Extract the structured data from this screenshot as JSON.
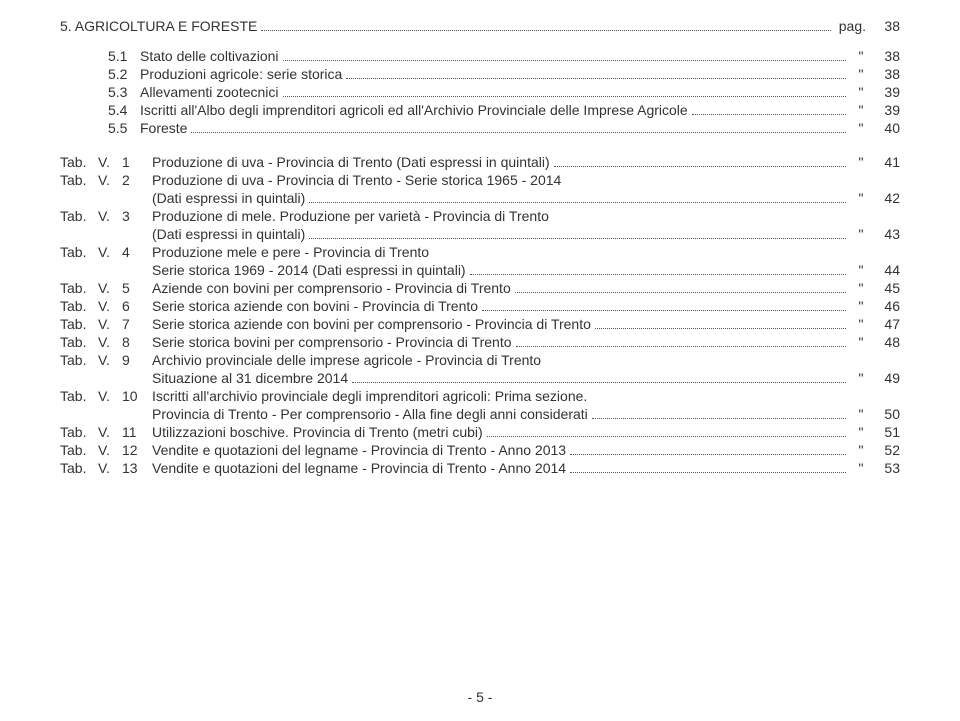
{
  "section": {
    "title": "5. AGRICOLTURA E FORESTE",
    "page_label": "pag.",
    "page": "38"
  },
  "subs": [
    {
      "num": "5.1",
      "text": "Stato delle coltivazioni",
      "page": "38"
    },
    {
      "num": "5.2",
      "text": "Produzioni agricole: serie storica",
      "page": "38"
    },
    {
      "num": "5.3",
      "text": "Allevamenti zootecnici",
      "page": "39"
    },
    {
      "num": "5.4",
      "text": "Iscritti all'Albo degli imprenditori agricoli ed all'Archivio Provinciale delle Imprese Agricole",
      "page": "39"
    },
    {
      "num": "5.5",
      "text": "Foreste",
      "page": "40"
    }
  ],
  "tabs": [
    {
      "col1": "Tab.",
      "col2": "V.",
      "col3": "1",
      "lines": [
        {
          "text": "Produzione di uva - Provincia di Trento (Dati espressi in quintali)",
          "page": "41"
        }
      ]
    },
    {
      "col1": "Tab.",
      "col2": "V.",
      "col3": "2",
      "lines": [
        {
          "text": "Produzione di uva - Provincia di Trento - Serie storica 1965 - 2014"
        },
        {
          "text": "(Dati espressi in quintali)",
          "page": "42"
        }
      ]
    },
    {
      "col1": "Tab.",
      "col2": "V.",
      "col3": "3",
      "lines": [
        {
          "text": "Produzione di mele. Produzione per varietà - Provincia di Trento"
        },
        {
          "text": "(Dati espressi in quintali)",
          "page": "43"
        }
      ]
    },
    {
      "col1": "Tab.",
      "col2": "V.",
      "col3": "4",
      "lines": [
        {
          "text": "Produzione mele e pere - Provincia di Trento"
        },
        {
          "text": "Serie storica 1969 - 2014 (Dati espressi in quintali)",
          "page": "44"
        }
      ]
    },
    {
      "col1": "Tab.",
      "col2": "V.",
      "col3": "5",
      "lines": [
        {
          "text": "Aziende con bovini per comprensorio - Provincia di Trento",
          "page": "45"
        }
      ]
    },
    {
      "col1": "Tab.",
      "col2": "V.",
      "col3": "6",
      "lines": [
        {
          "text": "Serie storica aziende con bovini - Provincia di Trento",
          "page": "46"
        }
      ]
    },
    {
      "col1": "Tab.",
      "col2": "V.",
      "col3": "7",
      "lines": [
        {
          "text": "Serie storica aziende con bovini per comprensorio - Provincia di Trento",
          "page": "47"
        }
      ]
    },
    {
      "col1": "Tab.",
      "col2": "V.",
      "col3": "8",
      "lines": [
        {
          "text": "Serie storica bovini per comprensorio - Provincia di Trento",
          "page": "48"
        }
      ]
    },
    {
      "col1": "Tab.",
      "col2": "V.",
      "col3": "9",
      "lines": [
        {
          "text": "Archivio provinciale delle imprese agricole - Provincia di Trento"
        },
        {
          "text": "Situazione al 31 dicembre 2014",
          "page": "49"
        }
      ]
    },
    {
      "col1": "Tab.",
      "col2": "V.",
      "col3": "10",
      "lines": [
        {
          "text": "Iscritti all'archivio provinciale degli imprenditori agricoli: Prima sezione."
        },
        {
          "text": "Provincia di Trento - Per comprensorio - Alla fine degli anni considerati",
          "page": "50"
        }
      ]
    },
    {
      "col1": "Tab.",
      "col2": "V.",
      "col3": "11",
      "lines": [
        {
          "text": "Utilizzazioni boschive. Provincia di Trento (metri cubi)",
          "page": "51"
        }
      ]
    },
    {
      "col1": "Tab.",
      "col2": "V.",
      "col3": "12",
      "lines": [
        {
          "text": "Vendite e quotazioni del legname - Provincia di Trento - Anno 2013",
          "page": "52"
        }
      ]
    },
    {
      "col1": "Tab.",
      "col2": "V.",
      "col3": "13",
      "lines": [
        {
          "text": "Vendite e quotazioni del legname - Provincia di Trento - Anno 2014",
          "page": "53"
        }
      ]
    }
  ],
  "quote_char": "\"",
  "footer": "- 5 -"
}
